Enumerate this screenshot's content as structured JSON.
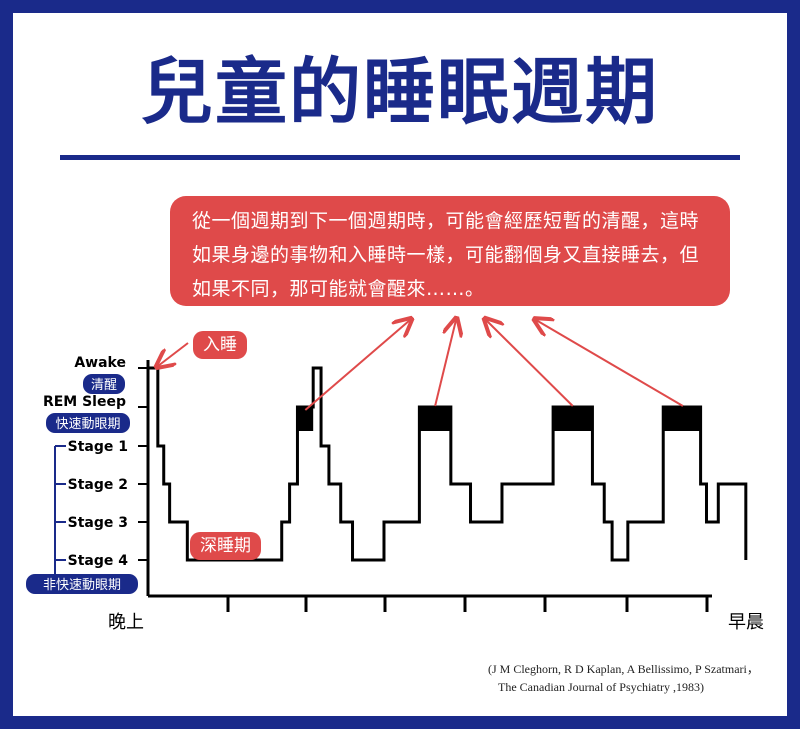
{
  "title": "兒童的睡眠週期",
  "callout_text": "從一個週期到下一個週期時，可能會經歷短暫的清醒，這時如果身邊的事物和入睡時一樣，可能翻個身又直接睡去，但如果不同，那可能就會醒來……。",
  "annotations": {
    "fall_asleep": "入睡",
    "deep_sleep": "深睡期"
  },
  "source_lines": [
    "(J M Cleghorn, R D Kaplan, A Bellissimo, P Szatmari，",
    "The Canadian Journal of Psychiatry ,1983)"
  ],
  "colors": {
    "brand_blue": "#1a2a8a",
    "callout_red": "#df4a4a",
    "text_black": "#000000"
  },
  "chart_data": {
    "type": "line",
    "title": "兒童的睡眠週期",
    "x_start_label": "晚上",
    "x_end_label": "早晨",
    "x_range": [
      0,
      15
    ],
    "stages": [
      {
        "key": "awake",
        "label": "Awake",
        "sublabel": "清醒",
        "level": 5
      },
      {
        "key": "rem",
        "label": "REM Sleep",
        "sublabel": "快速動眼期",
        "level": 4
      },
      {
        "key": "s1",
        "label": "Stage 1",
        "sublabel": "",
        "level": 3
      },
      {
        "key": "s2",
        "label": "Stage 2",
        "sublabel": "",
        "level": 2
      },
      {
        "key": "s3",
        "label": "Stage 3",
        "sublabel": "",
        "level": 1
      },
      {
        "key": "s4",
        "label": "Stage 4",
        "sublabel": "",
        "level": 0
      }
    ],
    "group_label": "非快速動眼期",
    "step_series": [
      [
        0,
        5
      ],
      [
        0.25,
        5
      ],
      [
        0.25,
        3
      ],
      [
        0.4,
        3
      ],
      [
        0.4,
        2
      ],
      [
        0.55,
        2
      ],
      [
        0.55,
        1
      ],
      [
        1,
        1
      ],
      [
        1,
        0
      ],
      [
        3.4,
        0
      ],
      [
        3.4,
        1
      ],
      [
        3.6,
        1
      ],
      [
        3.6,
        2
      ],
      [
        3.8,
        2
      ],
      [
        3.8,
        4
      ],
      [
        4.2,
        4
      ],
      [
        4.2,
        5
      ],
      [
        4.4,
        5
      ],
      [
        4.4,
        3
      ],
      [
        4.6,
        3
      ],
      [
        4.6,
        2
      ],
      [
        4.9,
        2
      ],
      [
        4.9,
        1
      ],
      [
        5.2,
        1
      ],
      [
        5.2,
        0
      ],
      [
        6,
        0
      ],
      [
        6,
        1
      ],
      [
        6.9,
        1
      ],
      [
        6.9,
        4
      ],
      [
        7.7,
        4
      ],
      [
        7.7,
        2
      ],
      [
        8.2,
        2
      ],
      [
        8.2,
        1
      ],
      [
        9,
        1
      ],
      [
        9,
        2
      ],
      [
        10.3,
        2
      ],
      [
        10.3,
        4
      ],
      [
        11.3,
        4
      ],
      [
        11.3,
        2
      ],
      [
        11.6,
        2
      ],
      [
        11.6,
        1
      ],
      [
        11.8,
        1
      ],
      [
        11.8,
        0
      ],
      [
        12.2,
        0
      ],
      [
        12.2,
        1
      ],
      [
        13.1,
        1
      ],
      [
        13.1,
        4
      ],
      [
        14.05,
        4
      ],
      [
        14.05,
        2
      ],
      [
        14.2,
        2
      ],
      [
        14.2,
        1
      ],
      [
        14.5,
        1
      ],
      [
        14.5,
        2
      ],
      [
        15.2,
        2
      ],
      [
        15.2,
        0
      ]
    ],
    "rem_blocks": [
      [
        3.8,
        4.2
      ],
      [
        6.9,
        7.7
      ],
      [
        10.3,
        11.3
      ],
      [
        13.1,
        14.05
      ]
    ]
  }
}
